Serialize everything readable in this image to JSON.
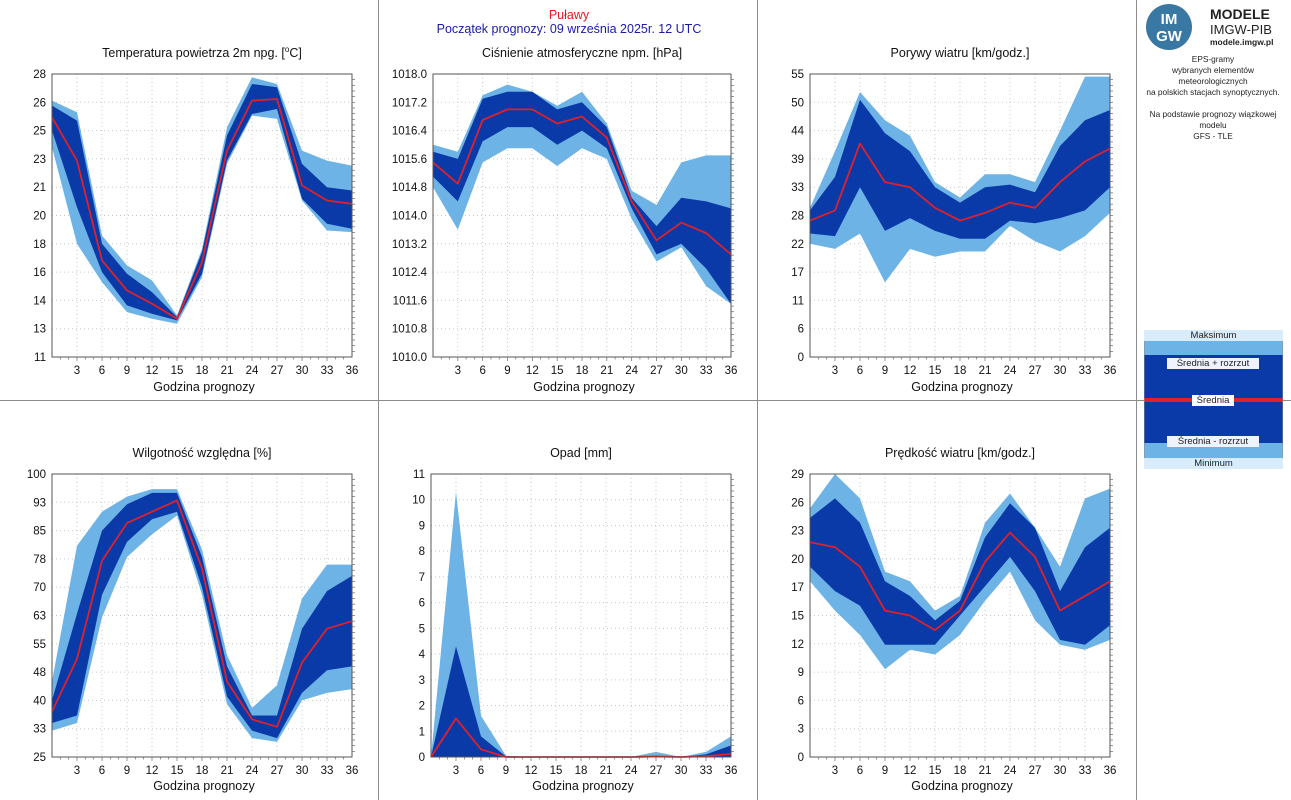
{
  "header": {
    "station": "Puławy",
    "forecast_start": "Początek prognozy: 09 września 2025r. 12 UTC"
  },
  "logo": {
    "badge_top": "IM",
    "badge_bottom": "GW",
    "title": "MODELE",
    "subtitle": "IMGW-PIB",
    "url": "modele.imgw.pl"
  },
  "description": {
    "line1": "EPS-gramy",
    "line2": "wybranych elementów meteorologicznych",
    "line3": "na polskich stacjach  synoptycznych.",
    "line4": "Na podstawie prognozy wiązkowej modelu",
    "line5": "GFS - TLE"
  },
  "legend": {
    "max": "Maksimum",
    "mean_plus": "Średnia + rozrzut",
    "mean": "Średnia",
    "mean_minus": "Średnia - rozrzut",
    "min": "Minimum"
  },
  "colors": {
    "outer_band": "#6db3e6",
    "inner_band": "#0a3aa8",
    "mean_line": "#e0202a",
    "grid": "#c8c8c8",
    "separator": "#8c8c8c",
    "station_text": "#e21c1c",
    "start_text": "#1a1aa8"
  },
  "chart_data": [
    {
      "id": "temperature",
      "type": "area",
      "title": "Temperatura powietrza 2m npg. [°C]",
      "title_main": "Temperatura powietrza 2m npg. [",
      "title_sup": "o",
      "title_end": "C]",
      "xlabel": "Godzina prognozy",
      "ylabel": "",
      "x": [
        0,
        3,
        6,
        9,
        12,
        15,
        18,
        21,
        24,
        27,
        30,
        33,
        36
      ],
      "xticks": [
        3,
        6,
        9,
        12,
        15,
        18,
        21,
        24,
        27,
        30,
        33,
        36
      ],
      "ylim": [
        11,
        28
      ],
      "yticks": [
        "11",
        "13",
        "14",
        "16",
        "18",
        "20",
        "21",
        "23",
        "25",
        "26",
        "28"
      ],
      "ytick_values": [
        11,
        12.7,
        14.4,
        16.1,
        17.8,
        19.5,
        21.2,
        22.9,
        24.6,
        26.3,
        28
      ],
      "series": [
        {
          "name": "Maksimum",
          "values": [
            26.4,
            25.7,
            18.3,
            16.5,
            15.6,
            13.5,
            17.5,
            24.8,
            27.8,
            27.4,
            23.4,
            22.8,
            22.5
          ]
        },
        {
          "name": "Średnia + rozrzut",
          "values": [
            26.1,
            25.2,
            17.8,
            16.0,
            14.9,
            13.4,
            17.3,
            24.3,
            27.4,
            27.2,
            22.6,
            21.2,
            21.0
          ]
        },
        {
          "name": "Średnia",
          "values": [
            25.4,
            22.8,
            16.8,
            15.0,
            14.2,
            13.3,
            16.7,
            23.4,
            26.4,
            26.5,
            21.3,
            20.4,
            20.2
          ]
        },
        {
          "name": "Średnia - rozrzut",
          "values": [
            24.6,
            20.0,
            16.1,
            14.1,
            13.6,
            13.2,
            16.0,
            22.8,
            25.6,
            25.9,
            20.5,
            19.0,
            18.7
          ]
        },
        {
          "name": "Minimum",
          "values": [
            23.6,
            17.8,
            15.5,
            13.7,
            13.3,
            13.0,
            15.8,
            22.6,
            25.5,
            25.3,
            20.4,
            18.6,
            18.5
          ]
        }
      ]
    },
    {
      "id": "pressure",
      "type": "area",
      "title": "Ciśnienie atmosferyczne npm. [hPa]",
      "xlabel": "Godzina prognozy",
      "ylabel": "",
      "x": [
        0,
        3,
        6,
        9,
        12,
        15,
        18,
        21,
        24,
        27,
        30,
        33,
        36
      ],
      "xticks": [
        3,
        6,
        9,
        12,
        15,
        18,
        21,
        24,
        27,
        30,
        33,
        36
      ],
      "ylim": [
        1010.0,
        1018.0
      ],
      "yticks": [
        "1010.0",
        "1010.8",
        "1011.6",
        "1012.4",
        "1013.2",
        "1014.0",
        "1014.8",
        "1015.6",
        "1016.4",
        "1017.2",
        "1018.0"
      ],
      "ytick_values": [
        1010.0,
        1010.8,
        1011.6,
        1012.4,
        1013.2,
        1014.0,
        1014.8,
        1015.6,
        1016.4,
        1017.2,
        1018.0
      ],
      "series": [
        {
          "name": "Maksimum",
          "values": [
            1016.0,
            1015.8,
            1017.4,
            1017.7,
            1017.5,
            1017.1,
            1017.5,
            1016.6,
            1014.7,
            1014.3,
            1015.5,
            1015.7,
            1015.7
          ]
        },
        {
          "name": "Średnia + rozrzut",
          "values": [
            1015.8,
            1015.6,
            1017.3,
            1017.5,
            1017.5,
            1017.0,
            1017.2,
            1016.5,
            1014.5,
            1013.7,
            1014.5,
            1014.4,
            1014.2
          ]
        },
        {
          "name": "Średnia",
          "values": [
            1015.5,
            1014.9,
            1016.7,
            1017.0,
            1017.0,
            1016.6,
            1016.8,
            1016.2,
            1014.4,
            1013.3,
            1013.8,
            1013.5,
            1012.9
          ]
        },
        {
          "name": "Średnia - rozrzut",
          "values": [
            1015.1,
            1014.4,
            1016.1,
            1016.5,
            1016.5,
            1016.0,
            1016.4,
            1015.9,
            1014.2,
            1012.9,
            1013.2,
            1012.5,
            1011.5
          ]
        },
        {
          "name": "Minimum",
          "values": [
            1014.8,
            1013.6,
            1015.5,
            1015.9,
            1015.9,
            1015.4,
            1015.9,
            1015.6,
            1013.9,
            1012.7,
            1013.1,
            1012.0,
            1011.5
          ]
        }
      ]
    },
    {
      "id": "gusts",
      "type": "area",
      "title": "Porywy wiatru [km/godz.]",
      "xlabel": "Godzina prognozy",
      "ylabel": "",
      "x": [
        0,
        3,
        6,
        9,
        12,
        15,
        18,
        21,
        24,
        27,
        30,
        33,
        36
      ],
      "xticks": [
        3,
        6,
        9,
        12,
        15,
        18,
        21,
        24,
        27,
        30,
        33,
        36
      ],
      "ylim": [
        0,
        55
      ],
      "yticks": [
        "0",
        "6",
        "11",
        "17",
        "22",
        "28",
        "33",
        "39",
        "44",
        "50",
        "55"
      ],
      "ytick_values": [
        0,
        5.5,
        11,
        16.5,
        22,
        27.5,
        33,
        38.5,
        44,
        49.5,
        55
      ],
      "series": [
        {
          "name": "Maksimum",
          "values": [
            29,
            40,
            51.5,
            46,
            43,
            34,
            31,
            35.5,
            35.5,
            34,
            44,
            54.5,
            54.5
          ]
        },
        {
          "name": "Średnia + rozrzut",
          "values": [
            28.5,
            35,
            50,
            43.5,
            40,
            33,
            30,
            33,
            33.5,
            32,
            41,
            46,
            48
          ]
        },
        {
          "name": "Średnia",
          "values": [
            26.5,
            28.5,
            41.5,
            34,
            33,
            29,
            26.5,
            28,
            30,
            29,
            34,
            38,
            40.5
          ]
        },
        {
          "name": "Średnia - rozrzut",
          "values": [
            24,
            23.5,
            33,
            24.5,
            27,
            24.5,
            23,
            23,
            26.5,
            26,
            27,
            28.5,
            33
          ]
        },
        {
          "name": "Minimum",
          "values": [
            22,
            21,
            24,
            14.5,
            21,
            19.5,
            20.5,
            20.5,
            25.5,
            22.5,
            20.5,
            23.5,
            28
          ]
        }
      ]
    },
    {
      "id": "humidity",
      "type": "area",
      "title": "Wilgotność względna [%]",
      "xlabel": "Godzina prognozy",
      "ylabel": "",
      "x": [
        0,
        3,
        6,
        9,
        12,
        15,
        18,
        21,
        24,
        27,
        30,
        33,
        36
      ],
      "xticks": [
        3,
        6,
        9,
        12,
        15,
        18,
        21,
        24,
        27,
        30,
        33,
        36
      ],
      "ylim": [
        25,
        100
      ],
      "yticks": [
        "25",
        "33",
        "40",
        "48",
        "55",
        "63",
        "70",
        "78",
        "85",
        "93",
        "100"
      ],
      "ytick_values": [
        25,
        32.5,
        40,
        47.5,
        55,
        62.5,
        70,
        77.5,
        85,
        92.5,
        100
      ],
      "series": [
        {
          "name": "Maksimum",
          "values": [
            45,
            81,
            90,
            94,
            96,
            96,
            80,
            52,
            38,
            44,
            67,
            76,
            76
          ]
        },
        {
          "name": "Średnia + rozrzut",
          "values": [
            40,
            63,
            85,
            92,
            95,
            95,
            78,
            49,
            36,
            36,
            59,
            69,
            73
          ]
        },
        {
          "name": "Średnia",
          "values": [
            37,
            51,
            77,
            87,
            90,
            93,
            75,
            45,
            35,
            33,
            50,
            59,
            61
          ]
        },
        {
          "name": "Średnia - rozrzut",
          "values": [
            34,
            36,
            68,
            82,
            88,
            90,
            70,
            41,
            32,
            30,
            42,
            48,
            49
          ]
        },
        {
          "name": "Minimum",
          "values": [
            32,
            34,
            62,
            78,
            84,
            89,
            68,
            39,
            30,
            29,
            40,
            42,
            43
          ]
        }
      ]
    },
    {
      "id": "precipitation",
      "type": "area",
      "title": "Opad [mm]",
      "xlabel": "Godzina prognozy",
      "ylabel": "",
      "x": [
        0,
        3,
        6,
        9,
        12,
        15,
        18,
        21,
        24,
        27,
        30,
        33,
        36
      ],
      "xticks": [
        3,
        6,
        9,
        12,
        15,
        18,
        21,
        24,
        27,
        30,
        33,
        36
      ],
      "ylim": [
        0,
        11
      ],
      "yticks": [
        "0",
        "1",
        "2",
        "3",
        "4",
        "5",
        "6",
        "7",
        "8",
        "9",
        "10",
        "11"
      ],
      "ytick_values": [
        0,
        1,
        2,
        3,
        4,
        5,
        6,
        7,
        8,
        9,
        10,
        11
      ],
      "series": [
        {
          "name": "Maksimum",
          "values": [
            0,
            10.3,
            1.6,
            0.05,
            0,
            0,
            0,
            0,
            0,
            0.2,
            0,
            0.2,
            0.8
          ]
        },
        {
          "name": "Średnia + rozrzut",
          "values": [
            0,
            4.3,
            0.8,
            0.02,
            0,
            0,
            0,
            0,
            0,
            0.05,
            0,
            0.1,
            0.45
          ]
        },
        {
          "name": "Średnia",
          "values": [
            0,
            1.5,
            0.3,
            0,
            0,
            0,
            0,
            0,
            0,
            0.02,
            0,
            0.03,
            0.12
          ]
        },
        {
          "name": "Średnia - rozrzut",
          "values": [
            0,
            0,
            0,
            0,
            0,
            0,
            0,
            0,
            0,
            0,
            0,
            0,
            0
          ]
        },
        {
          "name": "Minimum",
          "values": [
            0,
            0,
            0,
            0,
            0,
            0,
            0,
            0,
            0,
            0,
            0,
            0,
            0
          ]
        }
      ]
    },
    {
      "id": "wind_speed",
      "type": "area",
      "title": "Prędkość wiatru [km/godz.]",
      "xlabel": "Godzina prognozy",
      "ylabel": "",
      "x": [
        0,
        3,
        6,
        9,
        12,
        15,
        18,
        21,
        24,
        27,
        30,
        33,
        36
      ],
      "xticks": [
        3,
        6,
        9,
        12,
        15,
        18,
        21,
        24,
        27,
        30,
        33,
        36
      ],
      "ylim": [
        0,
        29
      ],
      "yticks": [
        "0",
        "3",
        "6",
        "9",
        "12",
        "15",
        "17",
        "20",
        "23",
        "26",
        "29"
      ],
      "ytick_values": [
        0,
        2.9,
        5.8,
        8.7,
        11.6,
        14.5,
        17.4,
        20.3,
        23.2,
        26.1,
        29
      ],
      "series": [
        {
          "name": "Maksimum",
          "values": [
            25.5,
            29,
            26.5,
            19,
            18,
            15,
            16.5,
            24,
            27,
            23.5,
            19.5,
            26.5,
            27.5
          ]
        },
        {
          "name": "Średnia + rozrzut",
          "values": [
            24.5,
            26.5,
            24,
            18,
            16.5,
            14,
            16,
            22.5,
            26,
            23.5,
            17,
            21.5,
            23.5
          ]
        },
        {
          "name": "Średnia",
          "values": [
            22,
            21.5,
            19.5,
            15,
            14.5,
            13,
            15,
            20,
            23,
            20.5,
            15,
            16.5,
            18
          ]
        },
        {
          "name": "Średnia - rozrzut",
          "values": [
            19.5,
            17,
            15.5,
            11.5,
            11.5,
            11.5,
            14.5,
            17.5,
            20.5,
            17,
            12,
            11.5,
            13.5
          ]
        },
        {
          "name": "Minimum",
          "values": [
            18,
            15,
            12.5,
            9,
            11,
            10.5,
            12.5,
            16,
            19,
            14,
            11.5,
            11,
            12
          ]
        }
      ]
    }
  ]
}
